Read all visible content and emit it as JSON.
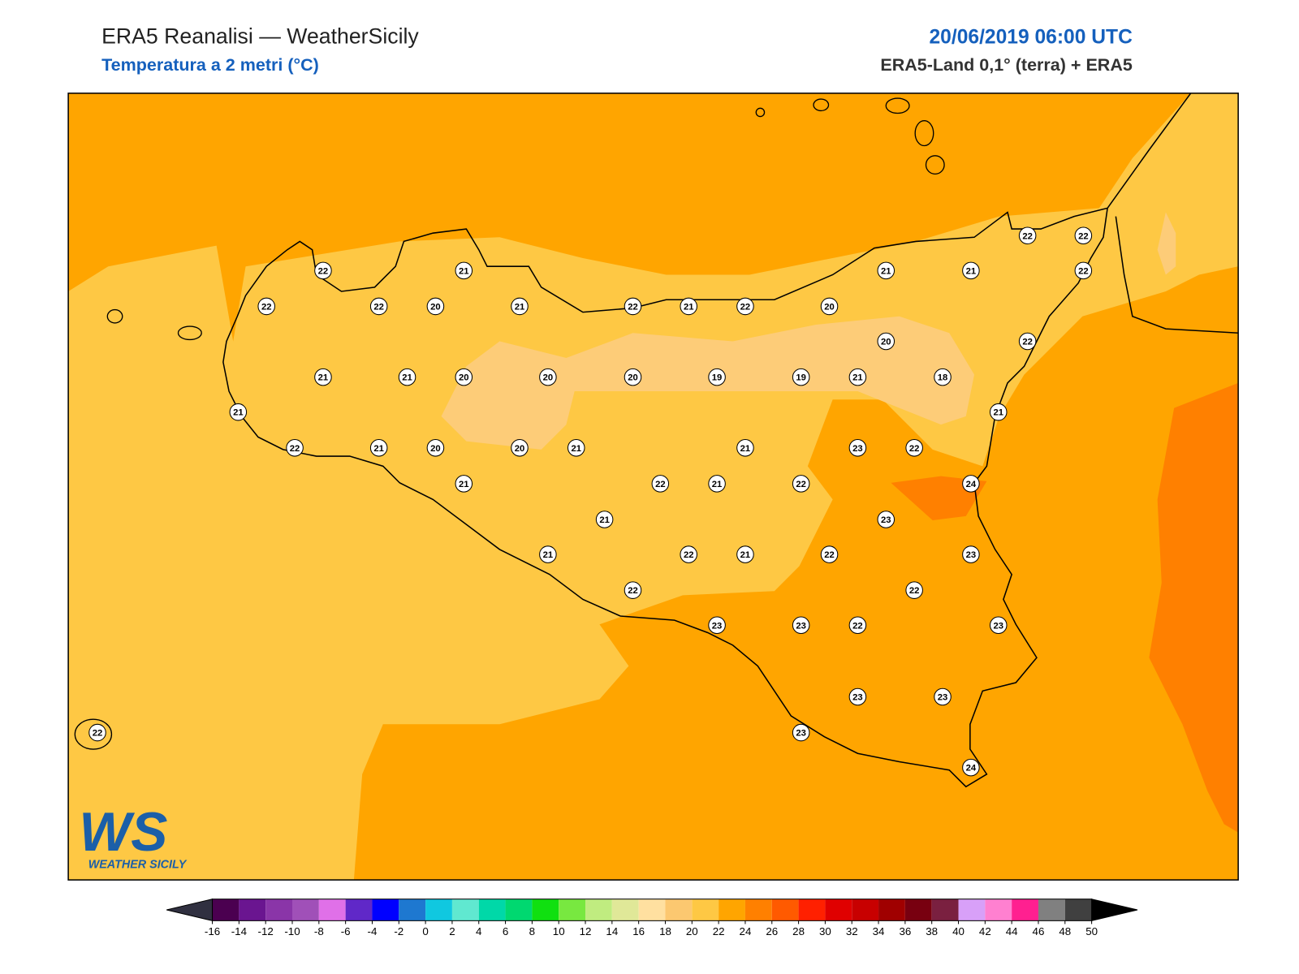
{
  "header": {
    "title": "ERA5 Reanalisi — WeatherSicily",
    "subtitle": "Temperatura a 2 metri (°C)",
    "date": "20/06/2019 06:00 UTC",
    "source": "ERA5-Land 0,1° (terra) + ERA5"
  },
  "logo": {
    "mark": "WS",
    "name": "WEATHER SICILY"
  },
  "stations": [
    22,
    21,
    22,
    22,
    20,
    21,
    22,
    21,
    22,
    20,
    21,
    21,
    22,
    22,
    22,
    20,
    22,
    21,
    21,
    20,
    20,
    20,
    19,
    19,
    21,
    18,
    21,
    21,
    22,
    21,
    20,
    20,
    21,
    21,
    23,
    22,
    21,
    22,
    21,
    22,
    24,
    23,
    21,
    21,
    22,
    21,
    22,
    23,
    22,
    22,
    23,
    23,
    22,
    23,
    23,
    23,
    22,
    23,
    24
  ],
  "colorbar": {
    "ticks": [
      -16,
      -14,
      -12,
      -10,
      -8,
      -6,
      -4,
      -2,
      0,
      2,
      4,
      6,
      8,
      10,
      12,
      14,
      16,
      18,
      20,
      22,
      24,
      26,
      28,
      30,
      32,
      34,
      36,
      38,
      40,
      42,
      44,
      46,
      48,
      50
    ],
    "colors": [
      "#4b0050",
      "#6a1590",
      "#8a35a8",
      "#a050b8",
      "#e070e8",
      "#6028c8",
      "#0000ff",
      "#1e78d0",
      "#10c8e0",
      "#60e8d0",
      "#00d8a8",
      "#00d870",
      "#10e010",
      "#78e840",
      "#c0ec80",
      "#e0e898",
      "#ffe0a0",
      "#fcc870",
      "#fec844",
      "#ffa500",
      "#ff8000",
      "#ff5a00",
      "#ff2000",
      "#e00000",
      "#c80000",
      "#a00000",
      "#780010",
      "#7a2040",
      "#d8a0f8",
      "#ff80d0",
      "#ff2090",
      "#808080",
      "#404040"
    ],
    "under_color": "#303040",
    "over_color": "#000000"
  }
}
